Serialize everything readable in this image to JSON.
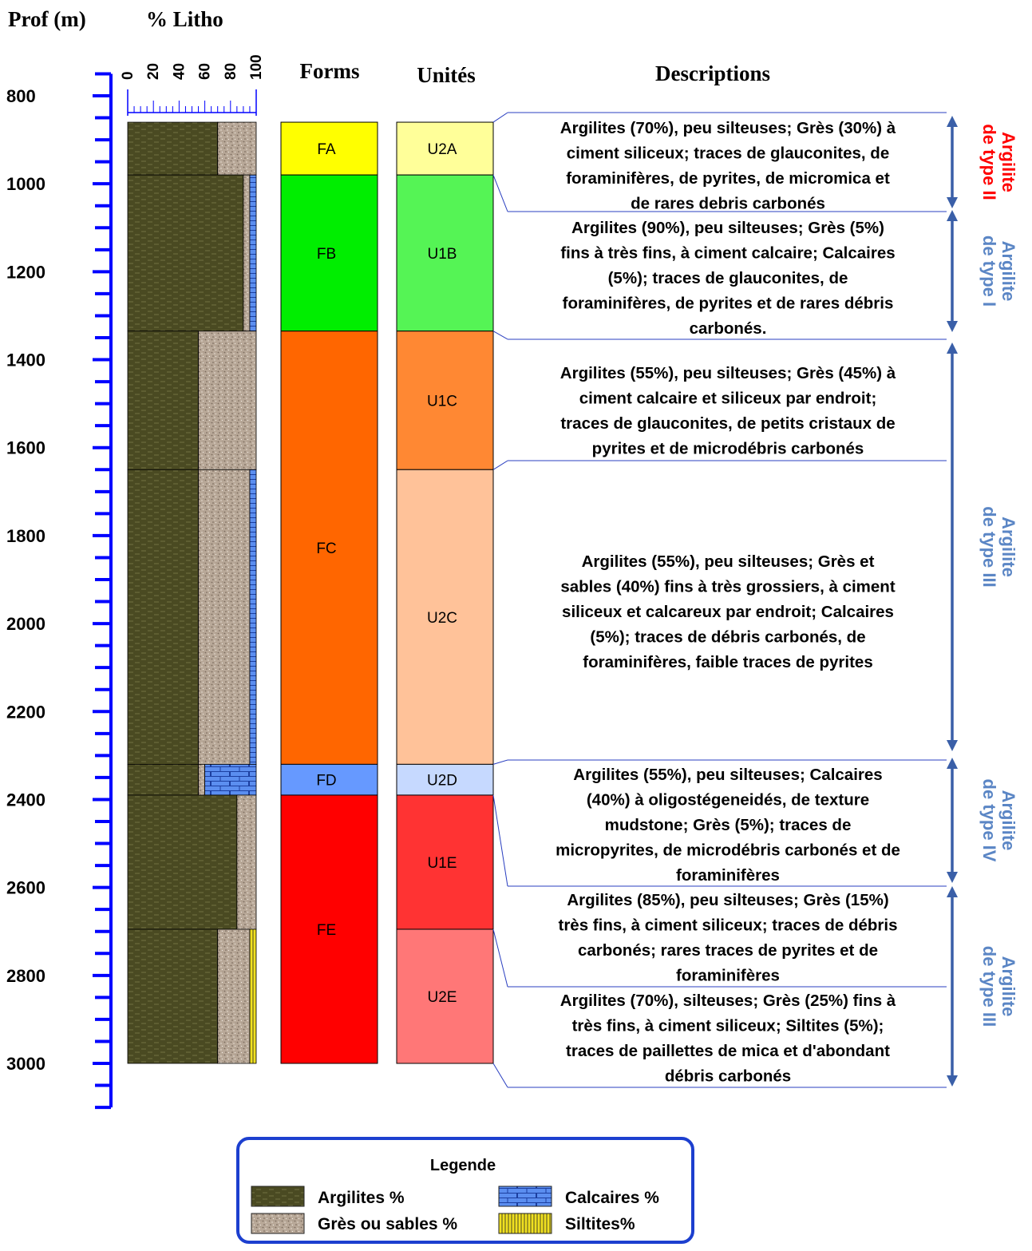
{
  "headers": {
    "depth": "Prof (m)",
    "litho": "% Litho",
    "forms": "Forms",
    "units": "Unités",
    "descriptions": "Descriptions"
  },
  "litho_ticks": [
    "0",
    "20",
    "40",
    "60",
    "80",
    "100"
  ],
  "depth_axis": {
    "min": 750,
    "max": 3100,
    "labels": [
      "800",
      "1000",
      "1200",
      "1400",
      "1600",
      "1800",
      "2000",
      "2200",
      "2400",
      "2600",
      "2800",
      "3000"
    ],
    "color": "#0000ff"
  },
  "colors": {
    "argilites": "#4a4a22",
    "gres": "#b8a898",
    "calcaires": "#5b8ef0",
    "siltites": "#f0e020",
    "arrow": "#3a5fa8",
    "type_label_blue": "#5b86c5",
    "type_label_red": "#ff0000",
    "legend_border": "#1c3fcf"
  },
  "litho_intervals": [
    {
      "top": 860,
      "base": 980,
      "argilites": 70,
      "gres": 30,
      "calcaires": 0,
      "siltites": 0
    },
    {
      "top": 980,
      "base": 1335,
      "argilites": 90,
      "gres": 5,
      "calcaires": 5,
      "siltites": 0
    },
    {
      "top": 1335,
      "base": 1650,
      "argilites": 55,
      "gres": 45,
      "calcaires": 0,
      "siltites": 0
    },
    {
      "top": 1650,
      "base": 2320,
      "argilites": 55,
      "gres": 40,
      "calcaires": 5,
      "siltites": 0
    },
    {
      "top": 2320,
      "base": 2390,
      "argilites": 55,
      "gres": 5,
      "calcaires": 40,
      "siltites": 0
    },
    {
      "top": 2390,
      "base": 2695,
      "argilites": 85,
      "gres": 15,
      "calcaires": 0,
      "siltites": 0
    },
    {
      "top": 2695,
      "base": 3000,
      "argilites": 70,
      "gres": 25,
      "calcaires": 0,
      "siltites": 5
    }
  ],
  "forms": [
    {
      "label": "FA",
      "top": 860,
      "base": 980,
      "color": "#ffff00"
    },
    {
      "label": "FB",
      "top": 980,
      "base": 1335,
      "color": "#00ee00"
    },
    {
      "label": "FC",
      "top": 1335,
      "base": 2320,
      "color": "#ff6600"
    },
    {
      "label": "FD",
      "top": 2320,
      "base": 2390,
      "color": "#6699ff"
    },
    {
      "label": "FE",
      "top": 2390,
      "base": 3000,
      "color": "#ff0000"
    }
  ],
  "units": [
    {
      "label": "U2A",
      "top": 860,
      "base": 980,
      "color": "#ffff99"
    },
    {
      "label": "U1B",
      "top": 980,
      "base": 1335,
      "color": "#55f455"
    },
    {
      "label": "U1C",
      "top": 1335,
      "base": 1650,
      "color": "#ff8833"
    },
    {
      "label": "U2C",
      "top": 1650,
      "base": 2320,
      "color": "#ffc299"
    },
    {
      "label": "U2D",
      "top": 2320,
      "base": 2390,
      "color": "#c6d9ff"
    },
    {
      "label": "U1E",
      "top": 2390,
      "base": 2695,
      "color": "#ff3333"
    },
    {
      "label": "U2E",
      "top": 2695,
      "base": 3000,
      "color": "#ff7777"
    }
  ],
  "descriptions": [
    {
      "lines": [
        "Argilites (70%), peu silteuses; Grès (30%) à",
        "ciment siliceux; traces de glauconites, de",
        "foraminifères, de pyrites, de micromica et",
        "de rares debris carbonés"
      ]
    },
    {
      "lines": [
        "Argilites (90%), peu silteuses; Grès (5%)",
        "fins à très fins, à ciment calcaire; Calcaires",
        "(5%); traces de glauconites, de",
        "foraminifères, de pyrites et de rares débris",
        "carbonés."
      ]
    },
    {
      "lines": [
        "Argilites (55%), peu silteuses; Grès (45%) à",
        "ciment calcaire et siliceux par endroit;",
        "traces de glauconites, de petits cristaux de",
        "pyrites et de microdébris carbonés"
      ]
    },
    {
      "lines": [
        "Argilites (55%), peu silteuses; Grès et",
        "sables (40%) fins à très grossiers, à ciment",
        "siliceux et calcareux par endroit; Calcaires",
        "(5%); traces de débris carbonés, de",
        "foraminifères, faible traces de pyrites"
      ]
    },
    {
      "lines": [
        "Argilites (55%), peu silteuses; Calcaires",
        "(40%) à oligostégeneidés, de texture",
        "mudstone; Grès (5%); traces de",
        "micropyrites, de microdébris carbonés et de",
        "foraminifères"
      ]
    },
    {
      "lines": [
        "Argilites (85%), peu silteuses; Grès (15%)",
        "très fins, à ciment siliceux; traces de débris",
        "carbonés; rares traces de pyrites et de",
        "foraminifères"
      ]
    },
    {
      "lines": [
        "Argilites (70%), silteuses; Grès (25%) fins à",
        "très fins, à ciment siliceux; Siltites (5%);",
        "traces de paillettes de mica et d'abondant",
        "débris carbonés"
      ]
    }
  ],
  "argilite_types": [
    {
      "line1": "Argilite",
      "line2": "de type II",
      "color": "red"
    },
    {
      "line1": "Argilite",
      "line2": "de type I",
      "color": "blue"
    },
    {
      "line1": "Argilite",
      "line2": "de type III",
      "color": "blue"
    },
    {
      "line1": "Argilite",
      "line2": "de type IV",
      "color": "blue"
    },
    {
      "line1": "Argilite",
      "line2": "de type III",
      "color": "blue"
    }
  ],
  "legend": {
    "title": "Legende",
    "items": [
      "Argilites %",
      "Calcaires %",
      "Grès ou sables %",
      "Siltites%"
    ]
  }
}
